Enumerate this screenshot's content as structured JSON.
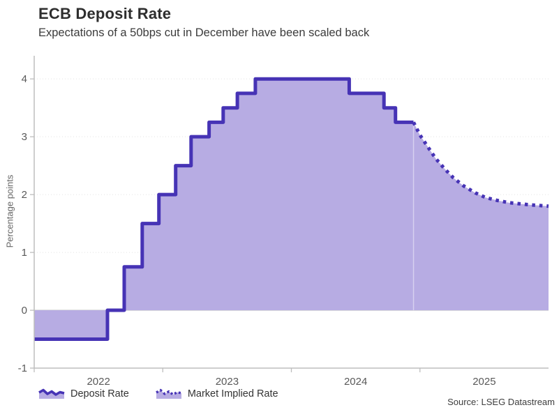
{
  "chart_data": {
    "type": "area",
    "title": "ECB Deposit Rate",
    "subtitle": "Expectations of a 50bps cut in December have been scaled back",
    "ylabel": "Percentage points",
    "xlabel": "",
    "source": "Source: LSEG Datastream",
    "xlim": [
      2022,
      2026
    ],
    "ylim": [
      -1,
      4.4
    ],
    "baseline": 0,
    "grid": "horizontal-dotted",
    "legend_position": "bottom-left",
    "yticks": [
      {
        "v": -1,
        "label": "-1",
        "grid": "none"
      },
      {
        "v": 0,
        "label": "0",
        "grid": "solid"
      },
      {
        "v": 1,
        "label": "1",
        "grid": "dotted"
      },
      {
        "v": 2,
        "label": "2",
        "grid": "dotted"
      },
      {
        "v": 3,
        "label": "3",
        "grid": "dotted"
      },
      {
        "v": 4,
        "label": "4",
        "grid": "dotted"
      }
    ],
    "xticks": [
      {
        "v": 2022,
        "label": "2022",
        "label_at": 2022.5
      },
      {
        "v": 2023,
        "label": "2023",
        "label_at": 2023.5
      },
      {
        "v": 2024,
        "label": "2024",
        "label_at": 2024.5
      },
      {
        "v": 2025,
        "label": "2025",
        "label_at": 2025.5
      }
    ],
    "series": [
      {
        "name": "Deposit Rate",
        "line_style": "solid",
        "step": true,
        "points": [
          [
            2022.0,
            -0.5
          ],
          [
            2022.57,
            0.0
          ],
          [
            2022.7,
            0.75
          ],
          [
            2022.84,
            1.5
          ],
          [
            2022.97,
            2.0
          ],
          [
            2023.1,
            2.5
          ],
          [
            2023.22,
            3.0
          ],
          [
            2023.36,
            3.25
          ],
          [
            2023.47,
            3.5
          ],
          [
            2023.58,
            3.75
          ],
          [
            2023.72,
            4.0
          ],
          [
            2024.45,
            3.75
          ],
          [
            2024.72,
            3.5
          ],
          [
            2024.81,
            3.25
          ],
          [
            2024.95,
            3.25
          ]
        ]
      },
      {
        "name": "Market Implied Rate",
        "line_style": "dotted",
        "step": false,
        "points": [
          [
            2024.95,
            3.25
          ],
          [
            2025.0,
            3.03
          ],
          [
            2025.06,
            2.83
          ],
          [
            2025.12,
            2.63
          ],
          [
            2025.19,
            2.45
          ],
          [
            2025.26,
            2.29
          ],
          [
            2025.34,
            2.15
          ],
          [
            2025.43,
            2.03
          ],
          [
            2025.51,
            1.95
          ],
          [
            2025.6,
            1.9
          ],
          [
            2025.69,
            1.86
          ],
          [
            2025.78,
            1.84
          ],
          [
            2025.87,
            1.82
          ],
          [
            2026.0,
            1.8
          ]
        ]
      }
    ],
    "divider": {
      "x": 2024.95,
      "from": 3.25,
      "to": 0
    },
    "colors": {
      "line": "#4633b5",
      "fill": "#b7ace3",
      "grid": "#e2e2e2",
      "zero_line": "#c6c6c6",
      "axis": "#bdbdbd",
      "tick_text": "#595959",
      "title_text": "#2e2e2e",
      "subtitle_text": "#3b3b3b"
    }
  }
}
